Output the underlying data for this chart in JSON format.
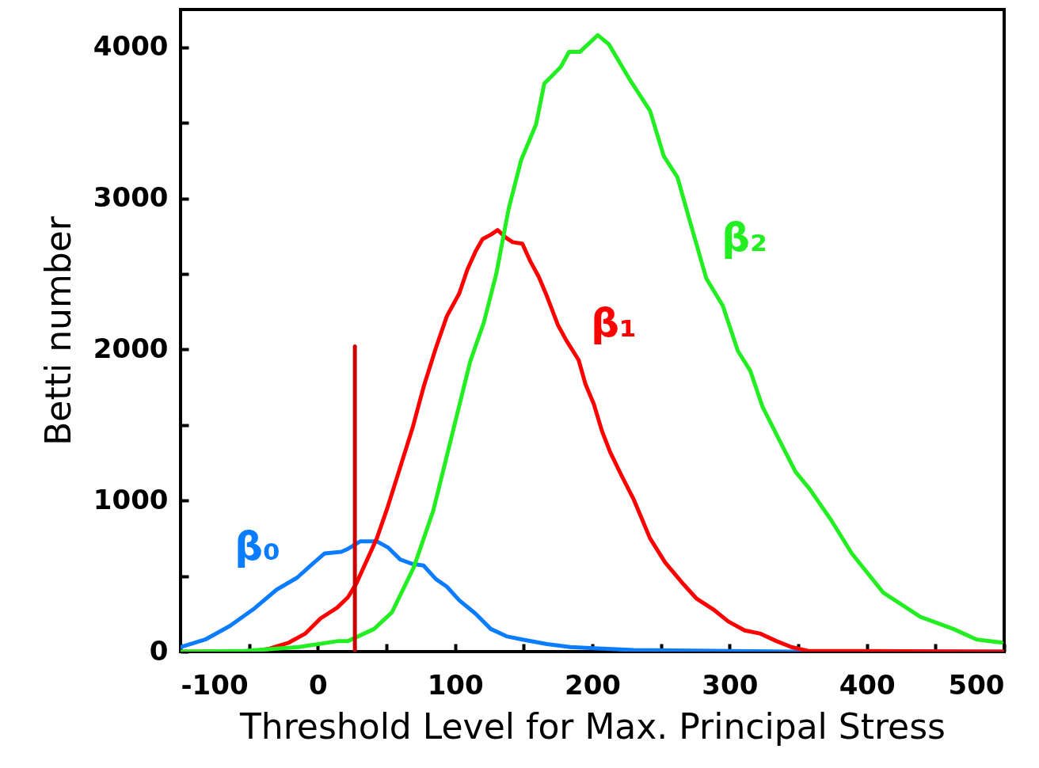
{
  "chart_data": {
    "type": "line",
    "xlabel": "Threshold Level for Max. Principal Stress",
    "ylabel": "Betti number",
    "xlim": [
      -100,
      500
    ],
    "ylim": [
      0,
      4250
    ],
    "xticks": [
      -100,
      {
        "value": -50,
        "label": null
      },
      0,
      {
        "value": 50,
        "label": null
      },
      100,
      {
        "value": 150,
        "label": null
      },
      200,
      {
        "value": 250,
        "label": null
      },
      300,
      {
        "value": 350,
        "label": null
      },
      400,
      {
        "value": 450,
        "label": null
      },
      500
    ],
    "yticks": [
      0,
      {
        "value": 500,
        "label": null
      },
      1000,
      {
        "value": 1500,
        "label": null
      },
      2000,
      {
        "value": 2500,
        "label": null
      },
      3000,
      {
        "value": 3500,
        "label": null
      },
      4000
    ],
    "grid": false,
    "line_style": "solid",
    "marker": "none",
    "series": [
      {
        "name": "β₀",
        "color": "#0a7cff",
        "x": [
          -100,
          -82,
          -64,
          -47,
          -30,
          -15,
          -4,
          5,
          17,
          22,
          31,
          43,
          51,
          60,
          69,
          77,
          86,
          94,
          103,
          115,
          126,
          138,
          149,
          167,
          184,
          207,
          230,
          288,
          345,
          500
        ],
        "values": [
          30,
          80,
          170,
          280,
          410,
          490,
          580,
          650,
          660,
          680,
          730,
          730,
          690,
          610,
          580,
          570,
          480,
          430,
          340,
          250,
          150,
          100,
          80,
          50,
          30,
          20,
          10,
          5,
          0,
          0
        ]
      },
      {
        "name": "β₁",
        "color": "#ff0000",
        "x": [
          -100,
          -47,
          -35,
          -21,
          -9,
          2,
          14,
          22,
          28,
          34,
          43,
          51,
          60,
          69,
          77,
          86,
          94,
          103,
          109,
          115,
          120,
          126,
          131,
          137,
          142,
          149,
          155,
          161,
          167,
          175,
          181,
          190,
          195,
          201,
          207,
          213,
          221,
          230,
          242,
          253,
          265,
          276,
          288,
          299,
          311,
          322,
          334,
          345,
          357,
          500
        ],
        "values": [
          0,
          0,
          20,
          60,
          120,
          220,
          290,
          360,
          450,
          570,
          750,
          960,
          1220,
          1480,
          1750,
          2010,
          2220,
          2370,
          2530,
          2650,
          2730,
          2760,
          2790,
          2740,
          2710,
          2700,
          2580,
          2480,
          2350,
          2160,
          2060,
          1930,
          1770,
          1640,
          1460,
          1320,
          1170,
          1010,
          750,
          590,
          460,
          350,
          280,
          200,
          140,
          120,
          70,
          30,
          5,
          0
        ]
      },
      {
        "name": "β₂",
        "color": "#22ee22",
        "x": [
          -100,
          -52,
          -14,
          15,
          22,
          41,
          54,
          70,
          84,
          99,
          111,
          121,
          130,
          139,
          148,
          159,
          165,
          177,
          183,
          191,
          204,
          212,
          227,
          242,
          252,
          262,
          271,
          283,
          295,
          306,
          315,
          324,
          339,
          348,
          358,
          374,
          389,
          412,
          439,
          463,
          480,
          498
        ],
        "values": [
          0,
          5,
          30,
          70,
          70,
          150,
          260,
          560,
          930,
          1480,
          1920,
          2180,
          2500,
          2930,
          3250,
          3490,
          3760,
          3870,
          3970,
          3970,
          4080,
          4020,
          3790,
          3580,
          3280,
          3140,
          2850,
          2470,
          2290,
          1990,
          1860,
          1620,
          1350,
          1190,
          1080,
          870,
          650,
          390,
          230,
          150,
          80,
          60
        ]
      },
      {
        "type": "line",
        "color": "#c80000",
        "x": [
          27,
          27
        ],
        "values": [
          0,
          2020
        ]
      }
    ]
  }
}
